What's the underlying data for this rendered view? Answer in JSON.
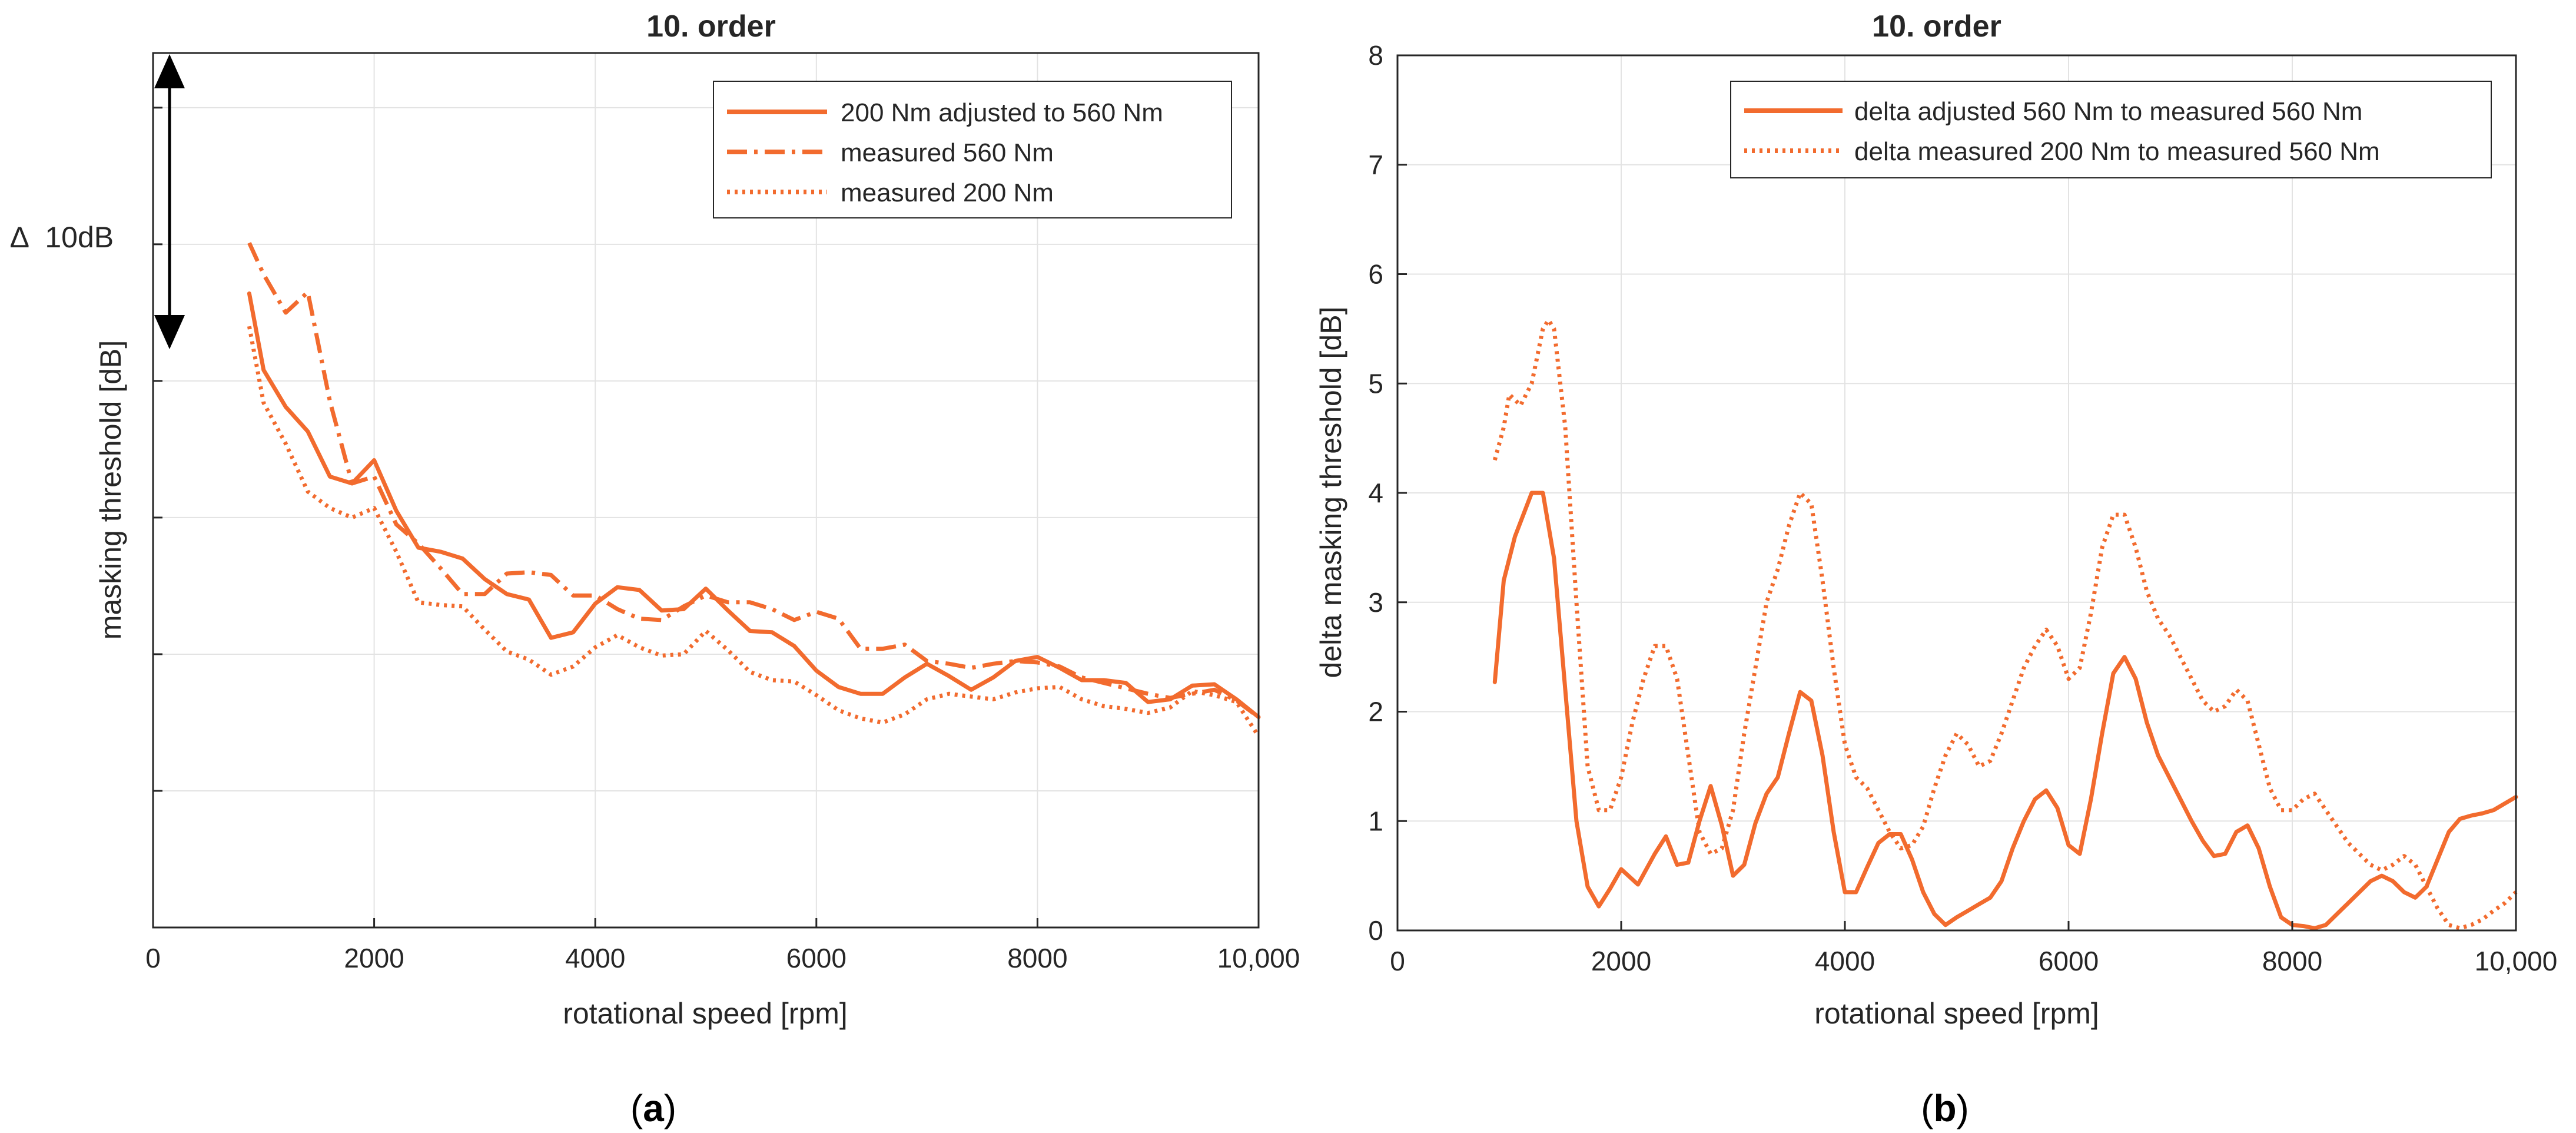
{
  "chart_data": [
    {
      "type": "line",
      "panel": "(a)",
      "title": "10. order",
      "xlabel": "rotational speed [rpm]",
      "ylabel": "masking threshold [dB]",
      "xlim": [
        0,
        10000
      ],
      "ylim": [
        0,
        6.4
      ],
      "grid": true,
      "legend_position": "top-right",
      "xtick_values": [
        0,
        2000,
        4000,
        6000,
        8000,
        10000
      ],
      "xtick_labels": [
        "0",
        "2000",
        "4000",
        "6000",
        "8000",
        "10,000"
      ],
      "ytick_values": [
        1,
        2,
        3,
        4,
        5,
        6
      ],
      "ytick_labels": [],
      "y_units_note": "relative scale, 1 unit = 10 dB / 2 gridlines",
      "annotation": {
        "text": "∆  10dB",
        "from_y": 4.0,
        "to_y": 6.0,
        "x": 100
      },
      "x": [
        870,
        1000,
        1200,
        1400,
        1600,
        1800,
        2000,
        2200,
        2400,
        2600,
        2800,
        3000,
        3200,
        3400,
        3600,
        3800,
        4000,
        4200,
        4400,
        4600,
        4800,
        5000,
        5200,
        5400,
        5600,
        5800,
        6000,
        6200,
        6400,
        6600,
        6800,
        7000,
        7200,
        7400,
        7600,
        7800,
        8000,
        8200,
        8400,
        8600,
        8800,
        9000,
        9200,
        9400,
        9600,
        9800,
        10000
      ],
      "series": [
        {
          "name": "200 Nm adjusted to 560 Nm",
          "style": "solid",
          "values": [
            4.64,
            4.08,
            3.81,
            3.63,
            3.3,
            3.25,
            3.42,
            3.05,
            2.78,
            2.75,
            2.7,
            2.55,
            2.44,
            2.4,
            2.12,
            2.16,
            2.37,
            2.49,
            2.47,
            2.32,
            2.33,
            2.48,
            2.32,
            2.17,
            2.16,
            2.06,
            1.88,
            1.76,
            1.71,
            1.71,
            1.83,
            1.93,
            1.84,
            1.74,
            1.83,
            1.95,
            1.98,
            1.9,
            1.81,
            1.81,
            1.79,
            1.65,
            1.67,
            1.77,
            1.78,
            1.67,
            1.54
          ]
        },
        {
          "name": "measured 560 Nm",
          "style": "dashdot",
          "values": [
            5.01,
            4.78,
            4.5,
            4.65,
            3.85,
            3.25,
            3.3,
            2.95,
            2.81,
            2.63,
            2.44,
            2.44,
            2.59,
            2.6,
            2.58,
            2.43,
            2.43,
            2.33,
            2.26,
            2.25,
            2.35,
            2.43,
            2.38,
            2.38,
            2.33,
            2.25,
            2.31,
            2.26,
            2.04,
            2.04,
            2.07,
            1.95,
            1.93,
            1.9,
            1.93,
            1.95,
            1.94,
            1.91,
            1.83,
            1.79,
            1.75,
            1.71,
            1.68,
            1.71,
            1.74,
            1.66,
            1.54
          ]
        },
        {
          "name": "measured 200 Nm",
          "style": "dotted",
          "values": [
            4.4,
            3.84,
            3.54,
            3.19,
            3.07,
            3.0,
            3.07,
            2.75,
            2.38,
            2.36,
            2.35,
            2.18,
            2.02,
            1.96,
            1.85,
            1.91,
            2.05,
            2.14,
            2.05,
            1.99,
            2.0,
            2.17,
            2.03,
            1.87,
            1.81,
            1.8,
            1.7,
            1.59,
            1.53,
            1.5,
            1.56,
            1.67,
            1.71,
            1.69,
            1.67,
            1.72,
            1.75,
            1.76,
            1.67,
            1.62,
            1.6,
            1.57,
            1.61,
            1.73,
            1.7,
            1.65,
            1.4
          ]
        }
      ]
    },
    {
      "type": "line",
      "panel": "(b)",
      "title": "10. order",
      "xlabel": "rotational speed [rpm]",
      "ylabel": "delta masking threshold [dB]",
      "xlim": [
        0,
        10000
      ],
      "ylim": [
        0,
        8
      ],
      "grid": true,
      "legend_position": "top-right",
      "xtick_values": [
        0,
        2000,
        4000,
        6000,
        8000,
        10000
      ],
      "xtick_labels": [
        "0",
        "2000",
        "4000",
        "6000",
        "8000",
        "10,000"
      ],
      "ytick_values": [
        0,
        1,
        2,
        3,
        4,
        5,
        6,
        7,
        8
      ],
      "ytick_labels": [
        "0",
        "1",
        "2",
        "3",
        "4",
        "5",
        "6",
        "7",
        "8"
      ],
      "series": [
        {
          "name": "delta adjusted 560 Nm to measured 560 Nm",
          "style": "solid",
          "x": [
            870,
            950,
            1050,
            1200,
            1300,
            1400,
            1500,
            1600,
            1700,
            1800,
            1900,
            2000,
            2150,
            2300,
            2400,
            2500,
            2600,
            2700,
            2800,
            2900,
            3000,
            3100,
            3200,
            3300,
            3400,
            3500,
            3600,
            3700,
            3800,
            3900,
            4000,
            4100,
            4200,
            4300,
            4400,
            4500,
            4600,
            4700,
            4800,
            4900,
            5000,
            5100,
            5200,
            5300,
            5400,
            5500,
            5600,
            5700,
            5800,
            5900,
            6000,
            6100,
            6200,
            6300,
            6400,
            6500,
            6600,
            6700,
            6800,
            6900,
            7000,
            7100,
            7200,
            7300,
            7400,
            7500,
            7600,
            7700,
            7800,
            7900,
            8000,
            8100,
            8200,
            8300,
            8400,
            8500,
            8600,
            8700,
            8800,
            8900,
            9000,
            9100,
            9200,
            9300,
            9400,
            9500,
            9600,
            9700,
            9800,
            9900,
            10000
          ],
          "y": [
            2.27,
            3.2,
            3.6,
            4.0,
            4.0,
            3.4,
            2.2,
            1.0,
            0.4,
            0.22,
            0.38,
            0.56,
            0.42,
            0.7,
            0.86,
            0.6,
            0.62,
            1.0,
            1.32,
            0.96,
            0.5,
            0.6,
            0.98,
            1.25,
            1.4,
            1.8,
            2.18,
            2.1,
            1.6,
            0.9,
            0.35,
            0.35,
            0.58,
            0.8,
            0.88,
            0.88,
            0.65,
            0.35,
            0.15,
            0.05,
            0.12,
            0.18,
            0.24,
            0.3,
            0.45,
            0.75,
            1.0,
            1.2,
            1.28,
            1.12,
            0.78,
            0.7,
            1.2,
            1.8,
            2.35,
            2.5,
            2.3,
            1.9,
            1.6,
            1.4,
            1.2,
            1.0,
            0.82,
            0.68,
            0.7,
            0.9,
            0.96,
            0.75,
            0.4,
            0.12,
            0.05,
            0.04,
            0.02,
            0.05,
            0.15,
            0.25,
            0.35,
            0.45,
            0.5,
            0.45,
            0.35,
            0.3,
            0.4,
            0.65,
            0.9,
            1.02,
            1.05,
            1.07,
            1.1,
            1.16,
            1.22
          ]
        },
        {
          "name": "delta measured 200 Nm to measured 560 Nm",
          "style": "dotted",
          "x": [
            870,
            950,
            1000,
            1100,
            1200,
            1300,
            1350,
            1400,
            1500,
            1600,
            1700,
            1800,
            1900,
            2000,
            2100,
            2200,
            2300,
            2400,
            2500,
            2600,
            2700,
            2800,
            2900,
            3000,
            3100,
            3200,
            3300,
            3400,
            3500,
            3600,
            3700,
            3800,
            3900,
            4000,
            4100,
            4200,
            4300,
            4400,
            4500,
            4600,
            4700,
            4800,
            4900,
            5000,
            5100,
            5200,
            5300,
            5400,
            5500,
            5600,
            5700,
            5800,
            5900,
            6000,
            6100,
            6200,
            6300,
            6400,
            6500,
            6600,
            6700,
            6800,
            6900,
            7000,
            7100,
            7200,
            7300,
            7400,
            7500,
            7600,
            7700,
            7800,
            7900,
            8000,
            8100,
            8200,
            8300,
            8400,
            8500,
            8600,
            8700,
            8800,
            8900,
            9000,
            9100,
            9200,
            9300,
            9400,
            9500,
            9600,
            9700,
            9800,
            9900,
            10000
          ],
          "y": [
            4.3,
            4.6,
            4.9,
            4.8,
            5.0,
            5.5,
            5.58,
            5.5,
            4.6,
            3.0,
            1.5,
            1.1,
            1.1,
            1.4,
            1.9,
            2.3,
            2.6,
            2.6,
            2.3,
            1.6,
            0.9,
            0.7,
            0.75,
            1.1,
            1.8,
            2.4,
            3.0,
            3.3,
            3.7,
            4.0,
            3.9,
            3.2,
            2.4,
            1.7,
            1.4,
            1.3,
            1.1,
            0.9,
            0.75,
            0.78,
            0.95,
            1.3,
            1.6,
            1.8,
            1.7,
            1.5,
            1.55,
            1.8,
            2.1,
            2.4,
            2.6,
            2.75,
            2.6,
            2.3,
            2.4,
            2.9,
            3.5,
            3.8,
            3.8,
            3.5,
            3.1,
            2.85,
            2.7,
            2.5,
            2.3,
            2.1,
            2.0,
            2.05,
            2.2,
            2.1,
            1.7,
            1.3,
            1.1,
            1.1,
            1.2,
            1.25,
            1.1,
            0.95,
            0.8,
            0.7,
            0.6,
            0.55,
            0.6,
            0.68,
            0.6,
            0.4,
            0.2,
            0.05,
            0.02,
            0.05,
            0.1,
            0.18,
            0.25,
            0.35
          ]
        }
      ]
    }
  ],
  "legends": {
    "a": [
      "200 Nm adjusted to 560 Nm",
      "measured 560 Nm",
      "measured 200 Nm"
    ],
    "b": [
      "delta adjusted 560 Nm to measured 560 Nm",
      "delta measured 200 Nm to measured 560 Nm"
    ]
  },
  "panel_labels": {
    "a": "a",
    "b": "b"
  },
  "colors": {
    "series": "#f26b2e",
    "grid": "#e3e3e3",
    "axis": "#262626",
    "text": "#262626"
  }
}
